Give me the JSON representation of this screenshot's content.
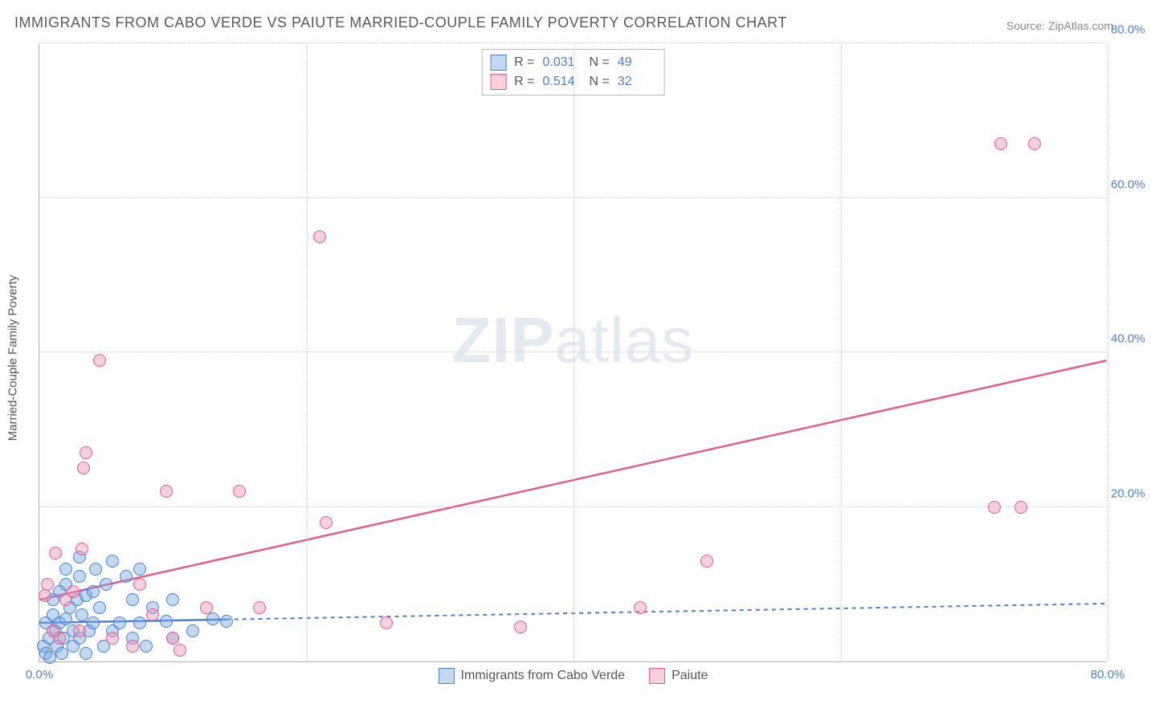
{
  "chart": {
    "type": "scatter",
    "title": "IMMIGRANTS FROM CABO VERDE VS PAIUTE MARRIED-COUPLE FAMILY POVERTY CORRELATION CHART",
    "source_prefix": "Source: ",
    "source_name": "ZipAtlas.com",
    "y_axis_label": "Married-Couple Family Poverty",
    "x_range": [
      0,
      80
    ],
    "y_range": [
      0,
      80
    ],
    "x_ticks": [
      0,
      20,
      40,
      60,
      80
    ],
    "y_ticks": [
      20,
      40,
      60,
      80
    ],
    "x_tick_labels": {
      "0": "0.0%",
      "80": "80.0%"
    },
    "y_tick_labels": {
      "20": "20.0%",
      "40": "40.0%",
      "60": "60.0%",
      "80": "80.0%"
    },
    "background_color": "#ffffff",
    "grid_color": "#cccccc",
    "axis_color": "#b0b0b0",
    "tick_label_color": "#4a7fd6",
    "watermark": "ZIPatlas",
    "series": [
      {
        "name": "Immigrants from Cabo Verde",
        "fill": "rgba(120,170,230,0.45)",
        "stroke": "#4a7fd6",
        "line_color": "#4a7fd6",
        "line_dash": "5,5",
        "R": "0.031",
        "N": "49",
        "regression": {
          "x1": 0,
          "y1": 5.0,
          "x2": 80,
          "y2": 7.5,
          "solid_until_x": 14
        },
        "points": [
          [
            0.3,
            2
          ],
          [
            0.5,
            1
          ],
          [
            0.5,
            5
          ],
          [
            0.7,
            3
          ],
          [
            0.8,
            0.5
          ],
          [
            1.0,
            6
          ],
          [
            1.0,
            8
          ],
          [
            1.2,
            4
          ],
          [
            1.3,
            2
          ],
          [
            1.5,
            5
          ],
          [
            1.5,
            9
          ],
          [
            1.7,
            1
          ],
          [
            1.8,
            3
          ],
          [
            2.0,
            10
          ],
          [
            2.0,
            12
          ],
          [
            2.0,
            5.5
          ],
          [
            2.3,
            7
          ],
          [
            2.5,
            2
          ],
          [
            2.5,
            4
          ],
          [
            2.8,
            8
          ],
          [
            3.0,
            13.5
          ],
          [
            3.0,
            11
          ],
          [
            3.0,
            3
          ],
          [
            3.2,
            6
          ],
          [
            3.5,
            8.5
          ],
          [
            3.5,
            1
          ],
          [
            3.7,
            4
          ],
          [
            4.0,
            5
          ],
          [
            4.0,
            9
          ],
          [
            4.2,
            12
          ],
          [
            4.5,
            7
          ],
          [
            4.8,
            2
          ],
          [
            5.0,
            10
          ],
          [
            5.5,
            4
          ],
          [
            5.5,
            13
          ],
          [
            6.0,
            5
          ],
          [
            6.5,
            11
          ],
          [
            7.0,
            3
          ],
          [
            7.0,
            8
          ],
          [
            7.5,
            12
          ],
          [
            7.5,
            5
          ],
          [
            8.0,
            2
          ],
          [
            8.5,
            7
          ],
          [
            9.5,
            5.2
          ],
          [
            10.0,
            3
          ],
          [
            10.0,
            8
          ],
          [
            11.5,
            4
          ],
          [
            13.0,
            5.5
          ],
          [
            14.0,
            5.2
          ]
        ]
      },
      {
        "name": "Paiute",
        "fill": "rgba(240,150,180,0.45)",
        "stroke": "#e75a8e",
        "line_color": "#e75a8e",
        "line_dash": "",
        "R": "0.514",
        "N": "32",
        "regression": {
          "x1": 0,
          "y1": 8.0,
          "x2": 80,
          "y2": 39.0,
          "solid_until_x": 80
        },
        "points": [
          [
            0.4,
            8.5
          ],
          [
            0.6,
            10
          ],
          [
            1.0,
            4
          ],
          [
            1.2,
            14
          ],
          [
            1.5,
            3
          ],
          [
            2.0,
            8
          ],
          [
            2.5,
            9
          ],
          [
            3.0,
            4
          ],
          [
            3.2,
            14.5
          ],
          [
            3.3,
            25
          ],
          [
            3.5,
            27
          ],
          [
            4.5,
            39
          ],
          [
            5.5,
            3
          ],
          [
            7.0,
            2
          ],
          [
            7.5,
            10
          ],
          [
            8.5,
            6
          ],
          [
            9.5,
            22
          ],
          [
            10.0,
            3
          ],
          [
            10.5,
            1.5
          ],
          [
            12.5,
            7
          ],
          [
            15.0,
            22
          ],
          [
            16.5,
            7
          ],
          [
            21.0,
            55
          ],
          [
            21.5,
            18
          ],
          [
            26.0,
            5
          ],
          [
            36.0,
            4.5
          ],
          [
            45.0,
            7
          ],
          [
            50.0,
            13
          ],
          [
            71.5,
            20
          ],
          [
            73.5,
            20
          ],
          [
            72.0,
            67
          ],
          [
            74.5,
            67
          ]
        ]
      }
    ]
  }
}
